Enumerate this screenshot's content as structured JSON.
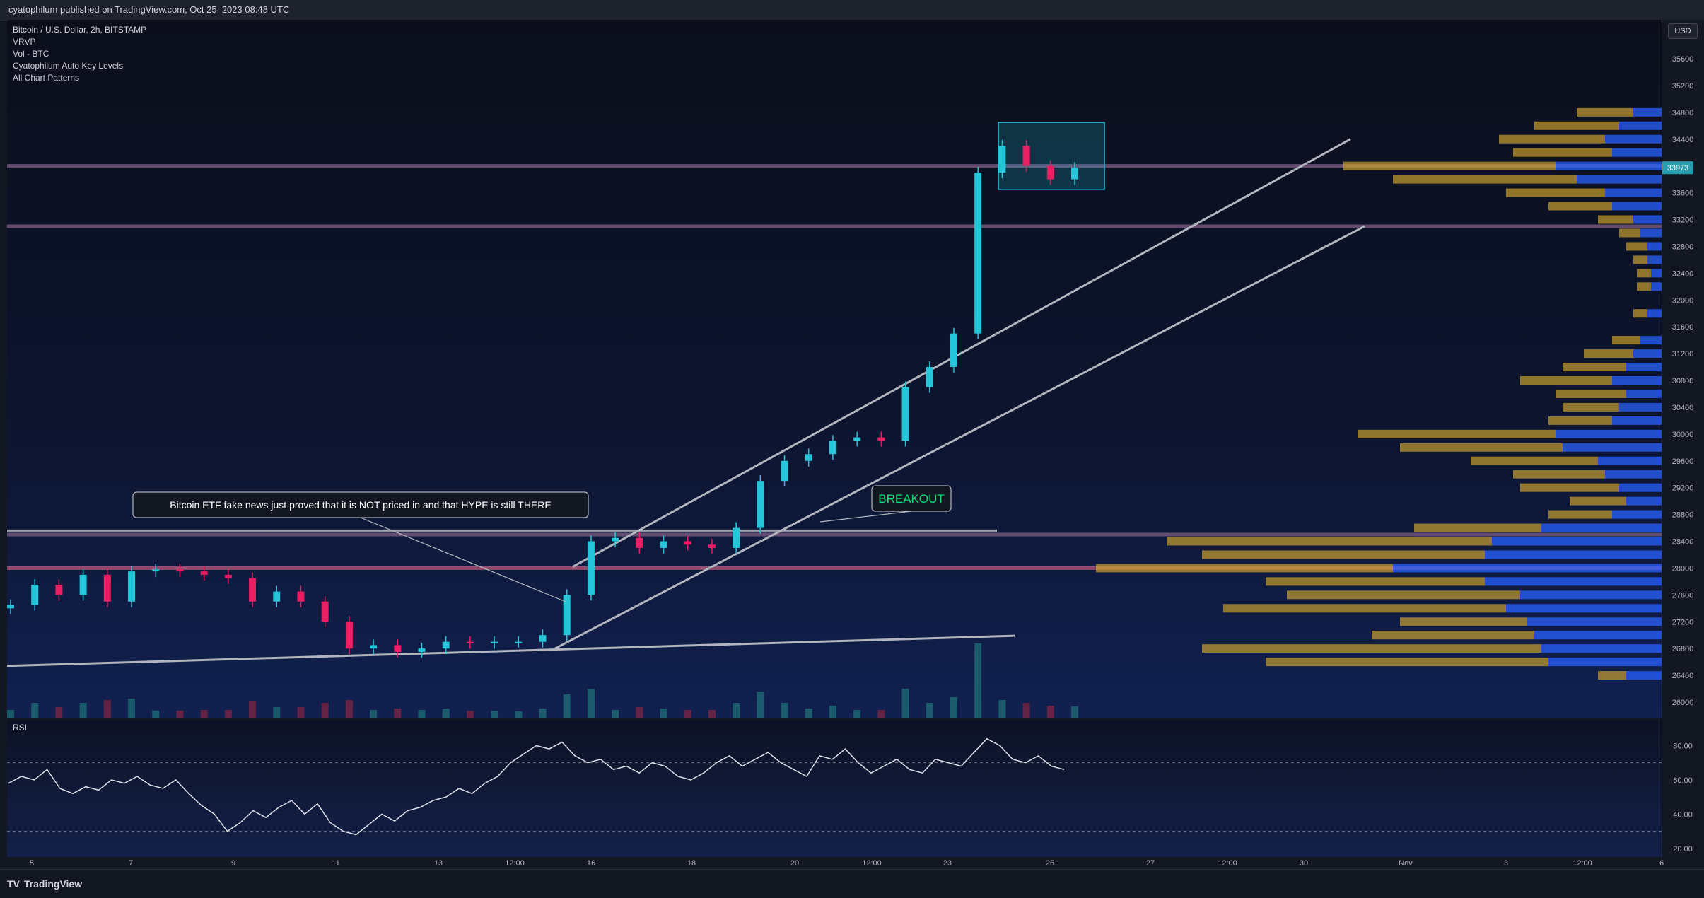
{
  "header": {
    "publish_text": "cyatophilum published on TradingView.com, Oct 25, 2023 08:48 UTC"
  },
  "legend": {
    "symbol": "Bitcoin / U.S. Dollar, 2h, BITSTAMP",
    "indicators": [
      "VRVP",
      "Vol - BTC",
      "Cyatophilum Auto Key Levels",
      "All Chart Patterns"
    ]
  },
  "currency_button": "USD",
  "footer": {
    "brand": "TradingView"
  },
  "annotations": {
    "etf_note": "Bitcoin ETF fake news just proved that it is NOT priced in and that HYPE is still THERE",
    "breakout": "BREAKOUT"
  },
  "last_price_label": "33973",
  "colors": {
    "up": "#26c6da",
    "down": "#e91e63",
    "accent_green": "#00e676",
    "level": "#9c6b8f",
    "vrvp_up": "#2962ff",
    "vrvp_down": "#c8a02d"
  },
  "chart_data": [
    {
      "type": "candlestick",
      "title": "Bitcoin / U.S. Dollar, 2h, BITSTAMP",
      "y_ticks": [
        26000,
        26400,
        26800,
        27200,
        27600,
        28000,
        28400,
        28800,
        29200,
        29600,
        30000,
        30400,
        30800,
        31200,
        31600,
        32000,
        32400,
        32800,
        33200,
        33600,
        34000,
        34400,
        34800,
        35200,
        35600
      ],
      "ylim": [
        25800,
        35900
      ],
      "x_ticks": [
        "5",
        "7",
        "9",
        "11",
        "13",
        "12:00",
        "16",
        "18",
        "20",
        "12:00",
        "23",
        "25",
        "27",
        "12:00",
        "30",
        "Nov",
        "3",
        "12:00",
        "6"
      ],
      "close_path": [
        {
          "d": "Oct 4",
          "c": 27450
        },
        {
          "d": "Oct 5",
          "c": 27750
        },
        {
          "d": "Oct 5 12:00",
          "c": 27600
        },
        {
          "d": "Oct 6",
          "c": 27900
        },
        {
          "d": "Oct 6 12:00",
          "c": 27500
        },
        {
          "d": "Oct 7",
          "c": 27950
        },
        {
          "d": "Oct 7 12:00",
          "c": 27980
        },
        {
          "d": "Oct 8",
          "c": 27950
        },
        {
          "d": "Oct 8 12:00",
          "c": 27900
        },
        {
          "d": "Oct 9",
          "c": 27850
        },
        {
          "d": "Oct 9 12:00",
          "c": 27500
        },
        {
          "d": "Oct 10",
          "c": 27650
        },
        {
          "d": "Oct 10 12:00",
          "c": 27500
        },
        {
          "d": "Oct 11",
          "c": 27200
        },
        {
          "d": "Oct 11 12:00",
          "c": 26800
        },
        {
          "d": "Oct 12",
          "c": 26850
        },
        {
          "d": "Oct 12 12:00",
          "c": 26750
        },
        {
          "d": "Oct 13",
          "c": 26800
        },
        {
          "d": "Oct 13 12:00",
          "c": 26900
        },
        {
          "d": "Oct 14",
          "c": 26880
        },
        {
          "d": "Oct 14 12:00",
          "c": 26900
        },
        {
          "d": "Oct 15",
          "c": 26900
        },
        {
          "d": "Oct 15 12:00",
          "c": 27000
        },
        {
          "d": "Oct 16",
          "c": 27600
        },
        {
          "d": "Oct 16 12:00",
          "c": 28400
        },
        {
          "d": "Oct 17",
          "c": 28450
        },
        {
          "d": "Oct 17 12:00",
          "c": 28300
        },
        {
          "d": "Oct 18",
          "c": 28400
        },
        {
          "d": "Oct 18 12:00",
          "c": 28350
        },
        {
          "d": "Oct 19",
          "c": 28300
        },
        {
          "d": "Oct 19 12:00",
          "c": 28600
        },
        {
          "d": "Oct 20",
          "c": 29300
        },
        {
          "d": "Oct 20 12:00",
          "c": 29600
        },
        {
          "d": "Oct 21",
          "c": 29700
        },
        {
          "d": "Oct 21 12:00",
          "c": 29900
        },
        {
          "d": "Oct 22",
          "c": 29950
        },
        {
          "d": "Oct 22 12:00",
          "c": 29900
        },
        {
          "d": "Oct 23",
          "c": 30700
        },
        {
          "d": "Oct 23 12:00",
          "c": 31000
        },
        {
          "d": "Oct 23 18:00",
          "c": 31500
        },
        {
          "d": "Oct 24",
          "c": 33900
        },
        {
          "d": "Oct 24 06:00",
          "c": 34300
        },
        {
          "d": "Oct 24 12:00",
          "c": 34000
        },
        {
          "d": "Oct 24 18:00",
          "c": 33800
        },
        {
          "d": "Oct 25 08:48",
          "c": 33973
        }
      ],
      "key_levels": [
        34000,
        33100,
        28500,
        28000
      ],
      "patterns": [
        "ascending channel",
        "rectangle"
      ],
      "grid": false
    },
    {
      "type": "line",
      "title": "RSI",
      "y_ticks": [
        20.0,
        40.0,
        60.0,
        80.0
      ],
      "ylim": [
        15,
        95
      ],
      "bands": [
        30,
        70
      ],
      "values": [
        58,
        62,
        60,
        66,
        55,
        52,
        56,
        54,
        60,
        58,
        62,
        57,
        55,
        60,
        52,
        45,
        40,
        30,
        35,
        42,
        38,
        44,
        48,
        40,
        46,
        35,
        30,
        28,
        34,
        40,
        36,
        42,
        44,
        48,
        50,
        55,
        52,
        58,
        62,
        70,
        75,
        80,
        78,
        82,
        74,
        70,
        72,
        66,
        68,
        64,
        70,
        68,
        62,
        60,
        64,
        70,
        74,
        68,
        72,
        76,
        70,
        66,
        62,
        74,
        72,
        78,
        70,
        64,
        68,
        72,
        66,
        64,
        72,
        70,
        68,
        76,
        84,
        80,
        72,
        70,
        74,
        68,
        66
      ]
    }
  ]
}
